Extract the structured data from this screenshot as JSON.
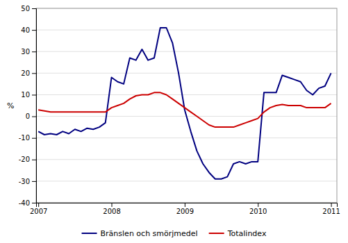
{
  "chart_data": {
    "type": "line",
    "ylabel": "%",
    "x": [
      2007.0,
      2007.0833333333333,
      2007.1666666666667,
      2007.25,
      2007.3333333333333,
      2007.4166666666667,
      2007.5,
      2007.5833333333333,
      2007.6666666666667,
      2007.75,
      2007.8333333333333,
      2007.9166666666667,
      2008.0,
      2008.0833333333333,
      2008.1666666666667,
      2008.25,
      2008.3333333333333,
      2008.4166666666667,
      2008.5,
      2008.5833333333333,
      2008.6666666666667,
      2008.75,
      2008.8333333333333,
      2008.9166666666667,
      2009.0,
      2009.0833333333333,
      2009.1666666666667,
      2009.25,
      2009.3333333333333,
      2009.4166666666667,
      2009.5,
      2009.5833333333333,
      2009.6666666666667,
      2009.75,
      2009.8333333333333,
      2009.9166666666667,
      2010.0,
      2010.0833333333333,
      2010.1666666666667,
      2010.25,
      2010.3333333333333,
      2010.4166666666667,
      2010.5,
      2010.5833333333333,
      2010.6666666666667,
      2010.75,
      2010.8333333333333,
      2010.9166666666667,
      2011.0
    ],
    "series": [
      {
        "name": "Bränslen och smörjmedel",
        "color": "#000080",
        "values": [
          -7,
          -8.5,
          -8,
          -8.5,
          -7,
          -8,
          -6,
          -7,
          -5.5,
          -6,
          -5,
          -3,
          18,
          16,
          15,
          27,
          26,
          31,
          26,
          27,
          41,
          41,
          34,
          20,
          3,
          -7,
          -16,
          -22,
          -26,
          -29,
          -29,
          -28,
          -22,
          -21,
          -22,
          -21,
          -21,
          11,
          11,
          11,
          19,
          18,
          17,
          16,
          12,
          10,
          13,
          14,
          20
        ]
      },
      {
        "name": "Totalindex",
        "color": "#CC0000",
        "values": [
          3,
          2.5,
          2,
          2,
          2,
          2,
          2,
          2,
          2,
          2,
          2,
          2,
          4,
          5,
          6,
          8,
          9.5,
          10,
          10,
          11,
          11,
          10,
          8,
          6,
          4,
          2,
          0,
          -2,
          -4,
          -5,
          -5,
          -5,
          -5,
          -4,
          -3,
          -2,
          -1,
          2,
          4,
          5,
          5.5,
          5,
          5,
          5,
          4,
          4,
          4,
          4,
          6
        ]
      }
    ],
    "xlim": [
      2006.97,
      2011.08
    ],
    "xticks": [
      2007,
      2008,
      2009,
      2010,
      2011
    ],
    "ylim": [
      -40,
      50
    ],
    "yticks": [
      -40,
      -30,
      -20,
      -10,
      0,
      10,
      20,
      30,
      40,
      50
    ],
    "grid": true,
    "legend": "bottom"
  }
}
